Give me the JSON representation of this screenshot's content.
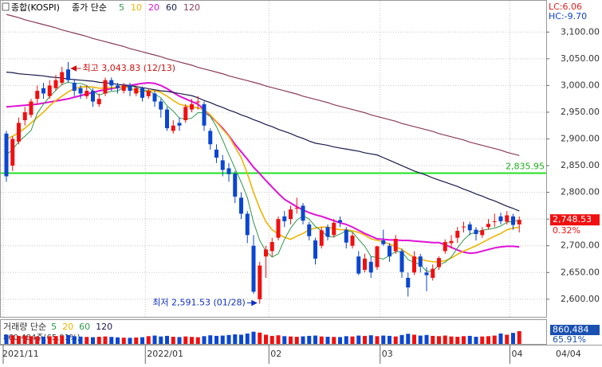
{
  "chart_data": {
    "type": "candlestick",
    "title": "종합(KOSPI)",
    "ma_label": "종가 단순",
    "lc": "LC:6.06",
    "hc": "HC:-9.70",
    "up_color": "#f01010",
    "down_color": "#0a46d2",
    "categories": [
      "2021/11",
      null,
      null,
      null,
      null,
      null,
      null,
      null,
      null,
      null,
      null,
      null,
      null,
      null,
      null,
      null,
      null,
      null,
      null,
      null,
      null,
      null,
      null,
      "2022/01",
      null,
      null,
      null,
      null,
      null,
      null,
      null,
      null,
      null,
      null,
      null,
      null,
      null,
      null,
      null,
      null,
      null,
      null,
      null,
      "02",
      null,
      null,
      null,
      null,
      null,
      null,
      null,
      null,
      null,
      null,
      null,
      null,
      null,
      null,
      null,
      null,
      null,
      "03",
      null,
      null,
      null,
      null,
      null,
      null,
      null,
      null,
      null,
      null,
      null,
      null,
      null,
      null,
      null,
      null,
      null,
      null,
      null,
      null,
      "04",
      null
    ],
    "last_date": "04/04",
    "open": [
      2910,
      2850,
      2895,
      2935,
      2945,
      2975,
      2995,
      2980,
      2995,
      3005,
      3030,
      3005,
      2995,
      2980,
      2990,
      2965,
      2985,
      3010,
      3000,
      2990,
      3000,
      2985,
      2995,
      2980,
      2985,
      2970,
      2955,
      2915,
      2930,
      2935,
      2955,
      2970,
      2965,
      2915,
      2880,
      2860,
      2845,
      2835,
      2790,
      2760,
      2700,
      2600,
      2680,
      2690,
      2715,
      2755,
      2750,
      2770,
      2775,
      2740,
      2710,
      2700,
      2735,
      2720,
      2748,
      2730,
      2700,
      2680,
      2655,
      2670,
      2660,
      2710,
      2700,
      2690,
      2690,
      2640,
      2650,
      2680,
      2650,
      2640,
      2660,
      2690,
      2705,
      2715,
      2735,
      2740,
      2730,
      2720,
      2735,
      2745,
      2755,
      2745,
      2755,
      2740
    ],
    "high": [
      2915,
      2905,
      2940,
      2960,
      2975,
      3000,
      3005,
      3010,
      3020,
      3035,
      3043.83,
      3012,
      3000,
      3000,
      2995,
      2985,
      3015,
      3015,
      3005,
      3005,
      3005,
      3000,
      2998,
      2995,
      2990,
      2975,
      2960,
      2935,
      2940,
      2965,
      2975,
      2980,
      2970,
      2920,
      2890,
      2870,
      2855,
      2840,
      2800,
      2765,
      2720,
      2670,
      2700,
      2715,
      2755,
      2765,
      2775,
      2790,
      2780,
      2745,
      2715,
      2735,
      2740,
      2750,
      2755,
      2735,
      2725,
      2690,
      2685,
      2680,
      2700,
      2730,
      2705,
      2720,
      2695,
      2650,
      2690,
      2685,
      2660,
      2665,
      2680,
      2712,
      2720,
      2735,
      2745,
      2745,
      2735,
      2735,
      2750,
      2760,
      2762,
      2765,
      2760,
      2755
    ],
    "low": [
      2820,
      2840,
      2890,
      2925,
      2940,
      2965,
      2975,
      2975,
      2990,
      3000,
      3005,
      2980,
      2975,
      2975,
      2960,
      2960,
      2980,
      2990,
      2985,
      2985,
      2980,
      2980,
      2970,
      2975,
      2960,
      2940,
      2915,
      2910,
      2915,
      2930,
      2950,
      2955,
      2915,
      2880,
      2855,
      2830,
      2820,
      2780,
      2750,
      2705,
      2610,
      2591.53,
      2640,
      2680,
      2710,
      2735,
      2740,
      2760,
      2740,
      2710,
      2665,
      2695,
      2710,
      2715,
      2735,
      2695,
      2695,
      2645,
      2650,
      2640,
      2655,
      2700,
      2670,
      2685,
      2640,
      2605,
      2645,
      2650,
      2615,
      2635,
      2655,
      2685,
      2695,
      2705,
      2725,
      2720,
      2710,
      2715,
      2730,
      2735,
      2740,
      2740,
      2730,
      2725
    ],
    "close": [
      2830,
      2900,
      2930,
      2950,
      2970,
      2990,
      2985,
      3000,
      3010,
      3025,
      3010,
      2990,
      2985,
      2990,
      2970,
      2975,
      3010,
      3000,
      2995,
      3000,
      2990,
      2995,
      2977,
      2990,
      2970,
      2955,
      2920,
      2925,
      2925,
      2960,
      2965,
      2970,
      2925,
      2890,
      2865,
      2842,
      2834,
      2792,
      2760,
      2720,
      2614,
      2663,
      2693,
      2707,
      2750,
      2746,
      2768,
      2771,
      2747,
      2718,
      2676,
      2729,
      2717,
      2743,
      2744,
      2706,
      2719,
      2648,
      2676,
      2650,
      2699,
      2703,
      2680,
      2713,
      2651,
      2622,
      2680,
      2661,
      2645,
      2657,
      2677,
      2707,
      2709,
      2728,
      2736,
      2729,
      2722,
      2729,
      2741,
      2746,
      2746,
      2757,
      2739,
      2748.53
    ],
    "series": [
      {
        "name": "5",
        "color": "#2f9a4a",
        "values": [
          2870,
          2880,
          2895,
          2905,
          2916,
          2948,
          2965,
          2979,
          2991,
          3002,
          3006,
          3004,
          3004,
          3000,
          2989,
          2982,
          2986,
          2989,
          2990,
          2996,
          3000,
          2996,
          2991,
          2990,
          2984,
          2977,
          2962,
          2952,
          2939,
          2937,
          2939,
          2949,
          2949,
          2942,
          2923,
          2898,
          2871,
          2845,
          2819,
          2790,
          2744,
          2710,
          2690,
          2679,
          2685,
          2712,
          2733,
          2748,
          2756,
          2750,
          2736,
          2728,
          2717,
          2717,
          2722,
          2728,
          2726,
          2712,
          2699,
          2680,
          2678,
          2675,
          2682,
          2689,
          2689,
          2674,
          2669,
          2665,
          2652,
          2653,
          2664,
          2669,
          2679,
          2696,
          2711,
          2722,
          2725,
          2729,
          2731,
          2733,
          2737,
          2744,
          2746,
          2747
        ]
      },
      {
        "name": "10",
        "color": "#f0b400",
        "values": [
          2900,
          2905,
          2912,
          2920,
          2930,
          2940,
          2950,
          2962,
          2972,
          2980,
          2988,
          2994,
          2997,
          2998,
          2997,
          2995,
          2995,
          2996,
          2997,
          2998,
          2995,
          2990,
          2988,
          2990,
          2990,
          2987,
          2980,
          2972,
          2965,
          2962,
          2960,
          2958,
          2955,
          2945,
          2932,
          2918,
          2905,
          2885,
          2865,
          2835,
          2800,
          2770,
          2745,
          2730,
          2722,
          2716,
          2712,
          2718,
          2723,
          2730,
          2733,
          2735,
          2735,
          2732,
          2730,
          2730,
          2728,
          2725,
          2720,
          2713,
          2710,
          2708,
          2703,
          2698,
          2693,
          2685,
          2678,
          2675,
          2672,
          2670,
          2670,
          2672,
          2677,
          2684,
          2690,
          2695,
          2700,
          2706,
          2712,
          2718,
          2723,
          2730,
          2733,
          2735
        ]
      },
      {
        "name": "20",
        "color": "#e010d8",
        "values": [
          2960,
          2961,
          2962,
          2963,
          2964,
          2965,
          2967,
          2969,
          2971,
          2973,
          2975,
          2978,
          2981,
          2984,
          2987,
          2990,
          2992,
          2994,
          2996,
          2998,
          3000,
          3002,
          3004,
          3005,
          3004,
          3000,
          2994,
          2987,
          2980,
          2975,
          2970,
          2965,
          2955,
          2943,
          2932,
          2920,
          2906,
          2890,
          2876,
          2862,
          2847,
          2835,
          2822,
          2810,
          2798,
          2787,
          2780,
          2773,
          2767,
          2762,
          2758,
          2755,
          2751,
          2747,
          2743,
          2740,
          2735,
          2729,
          2723,
          2718,
          2713,
          2712,
          2711,
          2711,
          2710,
          2710,
          2709,
          2708,
          2707,
          2706,
          2706,
          2702,
          2697,
          2692,
          2688,
          2686,
          2687,
          2690,
          2693,
          2696,
          2698,
          2699,
          2699,
          2698
        ]
      },
      {
        "name": "60",
        "color": "#1a1a4a",
        "values": [
          3025,
          3024,
          3022,
          3021,
          3020,
          3019,
          3018,
          3016,
          3015,
          3014,
          3012,
          3011,
          3010,
          3009,
          3008,
          3006,
          3005,
          3004,
          3002,
          3001,
          3000,
          2998,
          2996,
          2994,
          2992,
          2990,
          2989,
          2987,
          2985,
          2983,
          2981,
          2977,
          2972,
          2968,
          2963,
          2959,
          2954,
          2950,
          2945,
          2941,
          2936,
          2932,
          2927,
          2923,
          2918,
          2914,
          2910,
          2905,
          2901,
          2896,
          2892,
          2890,
          2888,
          2885,
          2883,
          2881,
          2879,
          2877,
          2874,
          2872,
          2870,
          2865,
          2860,
          2855,
          2850,
          2845,
          2840,
          2836,
          2832,
          2827,
          2823,
          2819,
          2815,
          2811,
          2806,
          2802,
          2797,
          2793,
          2788,
          2784,
          2779,
          2774,
          2770,
          2765
        ]
      },
      {
        "name": "120",
        "color": "#8c3c5c",
        "values": [
          3133,
          3130,
          3127,
          3123,
          3120,
          3117,
          3114,
          3111,
          3108,
          3104,
          3101,
          3098,
          3095,
          3092,
          3088,
          3085,
          3082,
          3079,
          3076,
          3073,
          3069,
          3066,
          3063,
          3060,
          3057,
          3054,
          3050,
          3047,
          3044,
          3041,
          3038,
          3034,
          3031,
          3028,
          3025,
          3022,
          3018,
          3015,
          3012,
          3009,
          3006,
          3003,
          2999,
          2996,
          2993,
          2990,
          2987,
          2984,
          2980,
          2977,
          2974,
          2971,
          2968,
          2964,
          2961,
          2958,
          2955,
          2952,
          2949,
          2945,
          2942,
          2939,
          2936,
          2933,
          2929,
          2926,
          2923,
          2920,
          2917,
          2914,
          2910,
          2907,
          2904,
          2901,
          2898,
          2894,
          2891,
          2888,
          2885,
          2882,
          2879,
          2875,
          2872,
          2869
        ]
      }
    ],
    "ylim": [
      2567,
      3160
    ],
    "yticks": [
      {
        "value": 2600,
        "label": "2,600.00"
      },
      {
        "value": 2650,
        "label": "2,650.00"
      },
      {
        "value": 2700,
        "label": "2,700.00"
      },
      {
        "value": 2750,
        "label": "2,750.00"
      },
      {
        "value": 2800,
        "label": "2,800.00"
      },
      {
        "value": 2850,
        "label": "2,850.00"
      },
      {
        "value": 2900,
        "label": "2,900.00"
      },
      {
        "value": 2950,
        "label": "2,950.00"
      },
      {
        "value": 3000,
        "label": "3,000.00"
      },
      {
        "value": 3050,
        "label": "3,050.00"
      },
      {
        "value": 3100,
        "label": "3,100.00"
      }
    ],
    "high_note": "최고 3,043.83 (12/13)",
    "low_note": "최저 2,591.53 (01/28)",
    "hline": {
      "value": 2835.95,
      "label": "2,835.95",
      "color": "#20e020"
    },
    "last_price": {
      "label": "2,748.53",
      "change": "0.32%"
    },
    "volume": {
      "label": "거래량 단순",
      "ma_names": [
        "5",
        "20",
        "60",
        "120"
      ],
      "ma_colors": [
        "#2f9a4a",
        "#f0b400",
        "#2f9a4a",
        "#1a1a4a"
      ],
      "readout": "860,484주(65.91%)",
      "current_label": "860,484",
      "ratio_label": "65.91%",
      "ylim": [
        0,
        1500000
      ],
      "values": [
        620000,
        580000,
        540000,
        560000,
        520000,
        500000,
        480000,
        510000,
        530000,
        560000,
        600000,
        520000,
        490000,
        470000,
        450000,
        480000,
        500000,
        470000,
        440000,
        420000,
        410000,
        430000,
        450000,
        520000,
        560000,
        500000,
        540000,
        480000,
        460000,
        500000,
        470000,
        450000,
        520000,
        580000,
        540000,
        560000,
        600000,
        640000,
        620000,
        700000,
        820000,
        760000,
        620000,
        540000,
        580000,
        520000,
        500000,
        480000,
        510000,
        540000,
        560000,
        500000,
        480000,
        470000,
        460000,
        520000,
        500000,
        560000,
        540000,
        580000,
        520000,
        560000,
        540000,
        500000,
        600000,
        680000,
        620000,
        560000,
        600000,
        540000,
        520000,
        560000,
        500000,
        480000,
        520000,
        540000,
        480000,
        500000,
        520000,
        560000,
        700000,
        620000,
        740000,
        860484
      ]
    }
  }
}
